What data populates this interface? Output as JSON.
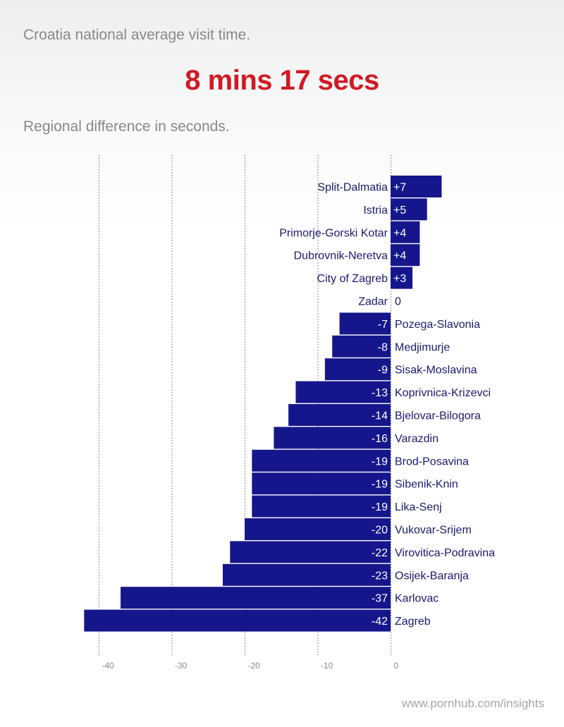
{
  "header": {
    "intro": "Croatia national average visit time.",
    "headline": "8 mins 17 secs",
    "subtitle": "Regional difference in seconds."
  },
  "footer": {
    "watermark": "www.pornhub.com/insights"
  },
  "colors": {
    "bar": "#16168c",
    "text": "#1a1a6e",
    "headline": "#d01a24",
    "grid": "#666666"
  },
  "chart_data": {
    "type": "bar",
    "orientation": "horizontal",
    "title": "Regional difference in seconds.",
    "xlabel": "",
    "ylabel": "",
    "xlim": [
      -42,
      7
    ],
    "xticks": [
      -40,
      -30,
      -20,
      -10,
      0
    ],
    "xtick_labels": [
      "-40",
      "-30",
      "-20",
      "-10",
      "0"
    ],
    "grid": "vertical dotted",
    "categories": [
      "Split-Dalmatia",
      "Istria",
      "Primorje-Gorski Kotar",
      "Dubrovnik-Neretva",
      "City of Zagreb",
      "Zadar",
      "Pozega-Slavonia",
      "Medjimurje",
      "Sisak-Moslavina",
      "Koprivnica-Krizevci",
      "Bjelovar-Bilogora",
      "Varazdin",
      "Brod-Posavina",
      "Sibenik-Knin",
      "Lika-Senj",
      "Vukovar-Srijem",
      "Virovitica-Podravina",
      "Osijek-Baranja",
      "Karlovac",
      "Zagreb"
    ],
    "values": [
      7,
      5,
      4,
      4,
      3,
      0,
      -7,
      -8,
      -9,
      -13,
      -14,
      -16,
      -19,
      -19,
      -19,
      -20,
      -22,
      -23,
      -37,
      -42
    ],
    "value_labels": [
      "+7",
      "+5",
      "+4",
      "+4",
      "+3",
      "0",
      "-7",
      "-8",
      "-9",
      "-13",
      "-14",
      "-16",
      "-19",
      "-19",
      "-19",
      "-20",
      "-22",
      "-23",
      "-37",
      "-42"
    ]
  }
}
